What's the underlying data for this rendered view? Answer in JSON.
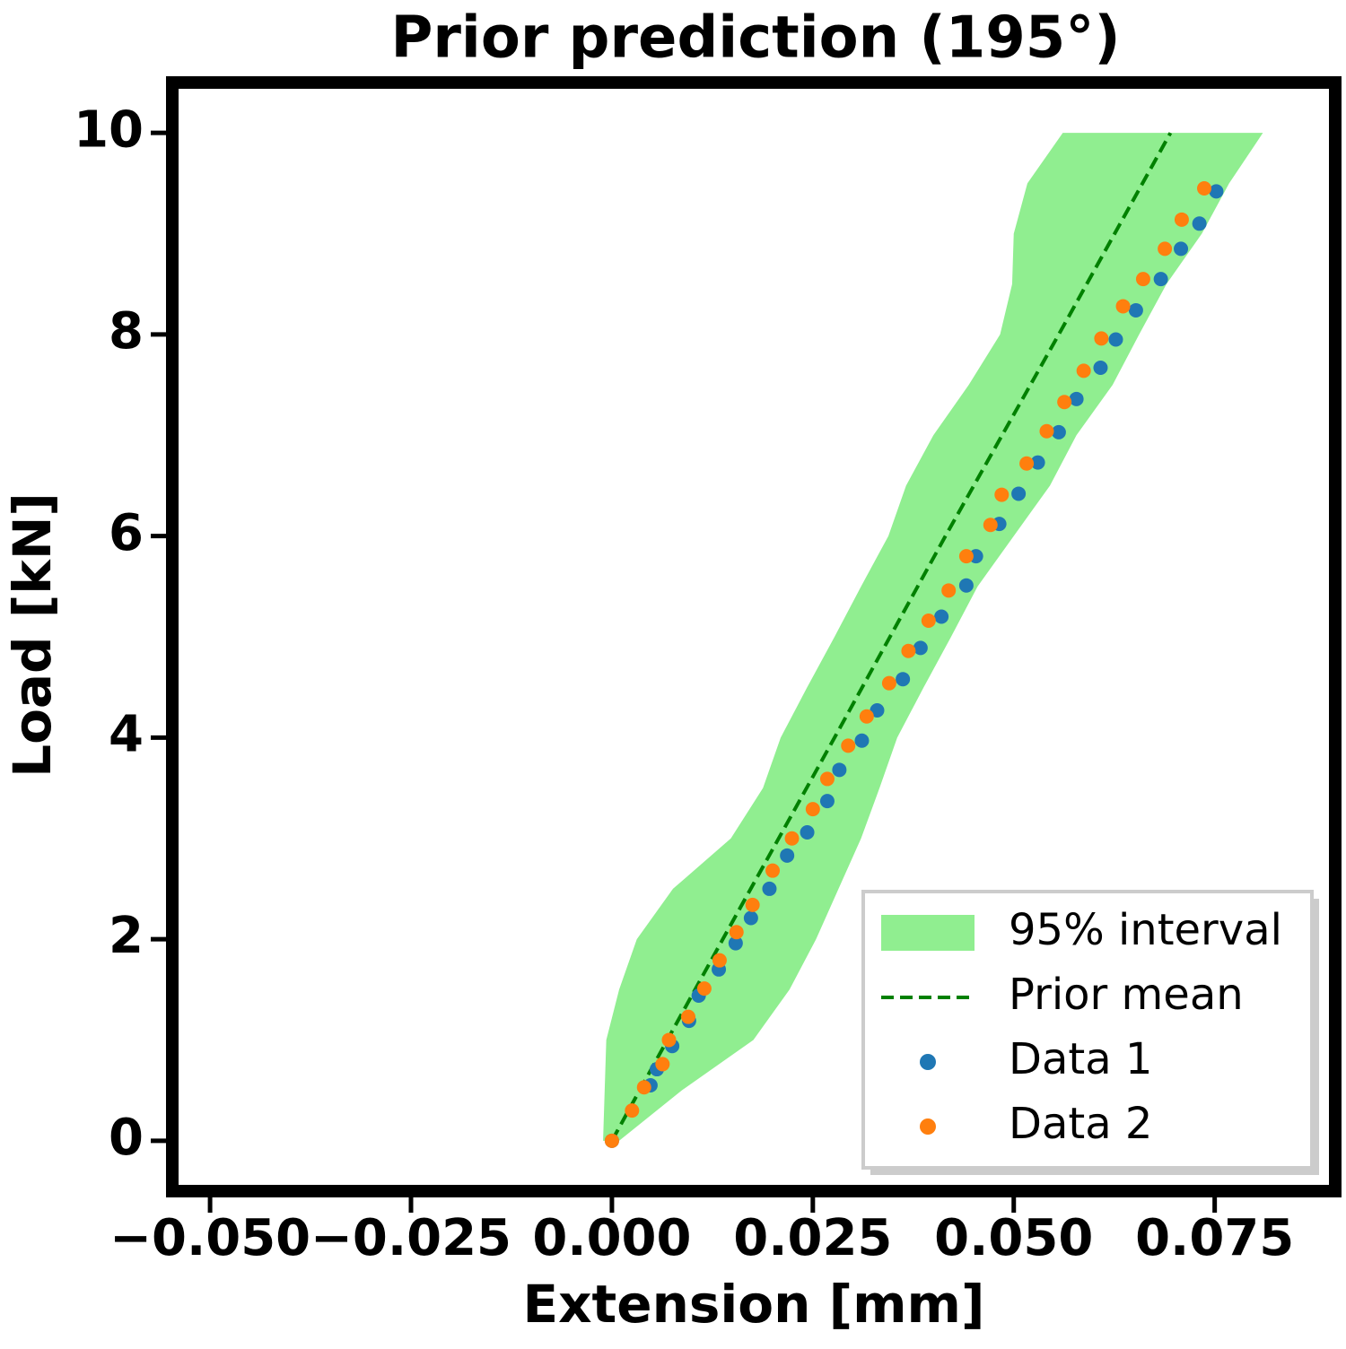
{
  "chart_data": {
    "type": "scatter",
    "title": "Prior prediction (195°)",
    "x_label": "Extension [mm]",
    "y_label": "Load [kN]",
    "xlim": [
      -0.0547,
      0.09
    ],
    "ylim": [
      -0.5,
      10.5
    ],
    "xticks": [
      {
        "value": -0.05,
        "label": "−0.050"
      },
      {
        "value": -0.025,
        "label": "−0.025"
      },
      {
        "value": 0,
        "label": "0.000"
      },
      {
        "value": 0.025,
        "label": "0.025"
      },
      {
        "value": 0.05,
        "label": "0.050"
      },
      {
        "value": 0.075,
        "label": "0.075"
      }
    ],
    "yticks": [
      0,
      2,
      4,
      6,
      8,
      10
    ],
    "grid": false,
    "legend_position": "lower right",
    "series": [
      {
        "name": "95% interval",
        "kind": "band",
        "color": "#90ee90",
        "y": [
          0,
          0.5,
          1,
          1.5,
          2,
          2.5,
          3,
          3.5,
          4,
          4.5,
          5,
          5.5,
          6,
          6.5,
          7,
          7.5,
          8,
          8.5,
          9,
          9.5,
          10
        ],
        "lower": [
          -0.0011,
          -0.0009,
          -0.0007,
          0.0009,
          0.0031,
          0.0076,
          0.0148,
          0.0188,
          0.021,
          0.0243,
          0.0277,
          0.031,
          0.0344,
          0.0366,
          0.04,
          0.0444,
          0.0483,
          0.0498,
          0.05,
          0.0517,
          0.0561
        ],
        "upper": [
          0.0009,
          0.0087,
          0.0176,
          0.0221,
          0.0254,
          0.0282,
          0.031,
          0.0333,
          0.0355,
          0.0388,
          0.0422,
          0.0455,
          0.05,
          0.0545,
          0.0578,
          0.0623,
          0.0656,
          0.069,
          0.0734,
          0.0768,
          0.081
        ]
      },
      {
        "name": "Prior mean",
        "kind": "line",
        "color": "#008000",
        "x": [
          0,
          0.0138,
          0.0277,
          0.0415,
          0.0556,
          0.0695
        ],
        "values": [
          0,
          2,
          4,
          6,
          8,
          10
        ]
      },
      {
        "name": "Data 1",
        "kind": "scatter",
        "color": "#1f77b4",
        "x": [
          0,
          0.0048,
          0.0056,
          0.0075,
          0.0096,
          0.0108,
          0.0133,
          0.0154,
          0.0173,
          0.0196,
          0.0218,
          0.0243,
          0.0268,
          0.0283,
          0.0311,
          0.033,
          0.0362,
          0.0384,
          0.041,
          0.0441,
          0.0453,
          0.0482,
          0.0506,
          0.053,
          0.0556,
          0.0578,
          0.0608,
          0.0627,
          0.0652,
          0.0683,
          0.0708,
          0.0731,
          0.0752
        ],
        "values": [
          0,
          0.55,
          0.71,
          0.94,
          1.19,
          1.44,
          1.7,
          1.96,
          2.21,
          2.5,
          2.83,
          3.06,
          3.37,
          3.68,
          3.97,
          4.27,
          4.58,
          4.89,
          5.2,
          5.51,
          5.8,
          6.12,
          6.42,
          6.73,
          7.03,
          7.36,
          7.67,
          7.95,
          8.24,
          8.55,
          8.85,
          9.1,
          9.42
        ]
      },
      {
        "name": "Data 2",
        "kind": "scatter",
        "color": "#ff7f0e",
        "x": [
          0,
          0.0025,
          0.004,
          0.0063,
          0.0071,
          0.0095,
          0.0115,
          0.0134,
          0.0155,
          0.0175,
          0.02,
          0.0224,
          0.025,
          0.0268,
          0.0294,
          0.0317,
          0.0345,
          0.0369,
          0.0394,
          0.0419,
          0.0441,
          0.0471,
          0.0485,
          0.0516,
          0.0541,
          0.0563,
          0.0587,
          0.0609,
          0.0636,
          0.0661,
          0.0688,
          0.0709,
          0.0737
        ],
        "values": [
          0,
          0.3,
          0.53,
          0.76,
          1,
          1.23,
          1.51,
          1.79,
          2.07,
          2.34,
          2.68,
          3,
          3.29,
          3.59,
          3.92,
          4.21,
          4.54,
          4.86,
          5.16,
          5.46,
          5.8,
          6.11,
          6.41,
          6.72,
          7.04,
          7.33,
          7.64,
          7.96,
          8.28,
          8.55,
          8.85,
          9.14,
          9.45
        ]
      }
    ]
  }
}
